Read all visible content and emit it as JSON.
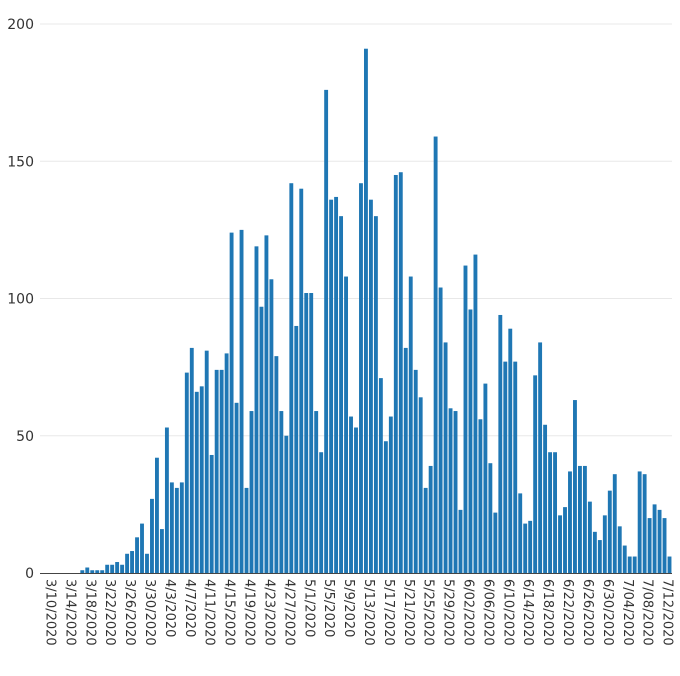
{
  "chart_data": {
    "type": "bar",
    "title": "",
    "xlabel": "",
    "ylabel": "",
    "ylim": [
      0,
      200
    ],
    "yticks": [
      0,
      50,
      100,
      150,
      200
    ],
    "grid": true,
    "bar_color": "#1f77b4",
    "start_date": "3/10/2020",
    "x": [
      "3/10/2020",
      "3/11/2020",
      "3/12/2020",
      "3/13/2020",
      "3/14/2020",
      "3/15/2020",
      "3/16/2020",
      "3/17/2020",
      "3/18/2020",
      "3/19/2020",
      "3/20/2020",
      "3/21/2020",
      "3/22/2020",
      "3/23/2020",
      "3/24/2020",
      "3/25/2020",
      "3/26/2020",
      "3/27/2020",
      "3/28/2020",
      "3/29/2020",
      "3/30/2020",
      "3/31/2020",
      "4/1/2020",
      "4/2/2020",
      "4/3/2020",
      "4/4/2020",
      "4/5/2020",
      "4/6/2020",
      "4/7/2020",
      "4/8/2020",
      "4/9/2020",
      "4/10/2020",
      "4/11/2020",
      "4/12/2020",
      "4/13/2020",
      "4/14/2020",
      "4/15/2020",
      "4/16/2020",
      "4/17/2020",
      "4/18/2020",
      "4/19/2020",
      "4/20/2020",
      "4/21/2020",
      "4/22/2020",
      "4/23/2020",
      "4/24/2020",
      "4/25/2020",
      "4/26/2020",
      "4/27/2020",
      "4/28/2020",
      "4/29/2020",
      "4/30/2020",
      "5/1/2020",
      "5/2/2020",
      "5/3/2020",
      "5/4/2020",
      "5/5/2020",
      "5/6/2020",
      "5/7/2020",
      "5/8/2020",
      "5/9/2020",
      "5/10/2020",
      "5/11/2020",
      "5/12/2020",
      "5/13/2020",
      "5/14/2020",
      "5/15/2020",
      "5/16/2020",
      "5/17/2020",
      "5/18/2020",
      "5/19/2020",
      "5/20/2020",
      "5/21/2020",
      "5/22/2020",
      "5/23/2020",
      "5/24/2020",
      "5/25/2020",
      "5/26/2020",
      "5/27/2020",
      "5/28/2020",
      "5/29/2020",
      "5/30/2020",
      "5/31/2020",
      "6/1/2020",
      "6/2/2020",
      "6/3/2020",
      "6/4/2020",
      "6/5/2020",
      "6/6/2020",
      "6/7/2020",
      "6/8/2020",
      "6/9/2020",
      "6/10/2020",
      "6/11/2020",
      "6/12/2020",
      "6/13/2020",
      "6/14/2020",
      "6/15/2020",
      "6/16/2020",
      "6/17/2020",
      "6/18/2020",
      "6/19/2020",
      "6/20/2020",
      "6/21/2020",
      "6/22/2020",
      "6/23/2020",
      "6/24/2020",
      "6/25/2020",
      "6/26/2020",
      "6/27/2020",
      "6/28/2020",
      "6/29/2020",
      "6/30/2020",
      "7/1/2020",
      "7/2/2020",
      "7/3/2020",
      "7/4/2020",
      "7/5/2020",
      "7/6/2020",
      "7/7/2020",
      "7/8/2020",
      "7/9/2020",
      "7/10/2020",
      "7/11/2020",
      "7/12/2020",
      "7/13/2020",
      "7/14/2020"
    ],
    "values": [
      0,
      0,
      0,
      0,
      0,
      0,
      0,
      0,
      1,
      2,
      1,
      1,
      1,
      3,
      3,
      4,
      3,
      7,
      8,
      13,
      18,
      7,
      27,
      42,
      16,
      53,
      33,
      31,
      33,
      73,
      82,
      66,
      68,
      81,
      43,
      74,
      74,
      80,
      124,
      62,
      125,
      31,
      59,
      119,
      97,
      123,
      107,
      79,
      59,
      50,
      142,
      90,
      140,
      102,
      102,
      59,
      44,
      176,
      136,
      137,
      130,
      108,
      57,
      53,
      142,
      191,
      136,
      130,
      71,
      48,
      57,
      145,
      146,
      82,
      108,
      74,
      64,
      31,
      39,
      159,
      104,
      84,
      60,
      59,
      23,
      112,
      96,
      116,
      56,
      69,
      40,
      22,
      94,
      77,
      89,
      77,
      29,
      18,
      19,
      72,
      84,
      54,
      44,
      44,
      21,
      24,
      37,
      63,
      39,
      39,
      26,
      15,
      12,
      21,
      30,
      36,
      17,
      10,
      6,
      6,
      37,
      36,
      20,
      25,
      23,
      20,
      6
    ],
    "xtick_labels": [
      "3/10/2020",
      "3/14/2020",
      "3/18/2020",
      "3/22/2020",
      "3/26/2020",
      "3/30/2020",
      "4/3/2020",
      "4/7/2020",
      "4/11/2020",
      "4/15/2020",
      "4/19/2020",
      "4/23/2020",
      "4/27/2020",
      "5/1/2020",
      "5/5/2020",
      "5/9/2020",
      "5/13/2020",
      "5/17/2020",
      "5/21/2020",
      "5/25/2020",
      "5/29/2020",
      "6/02/2020",
      "6/06/2020",
      "6/10/2020",
      "6/14/2020",
      "6/18/2020",
      "6/22/2020",
      "6/26/2020",
      "6/30/2020",
      "7/04/2020",
      "7/08/2020",
      "7/12/2020"
    ],
    "xtick_every_days": 4
  }
}
